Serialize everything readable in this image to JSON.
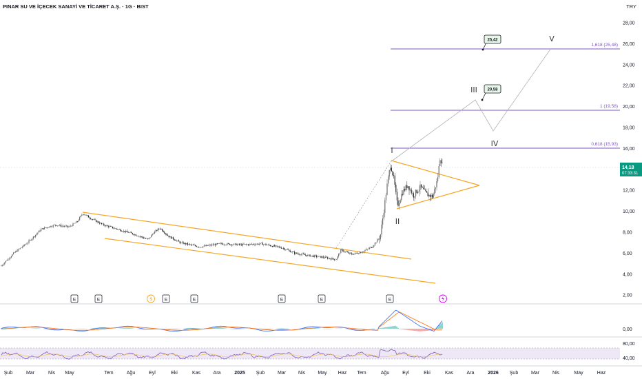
{
  "header": {
    "title": "PINAR SU VE İÇECEK SANAYİ VE TİCARET A.Ş. · 1G · BIST",
    "currency": "TRY"
  },
  "price_axis": {
    "labels": [
      "28,00",
      "26,00",
      "24,00",
      "22,00",
      "20,00",
      "18,00",
      "16,00",
      "14,00",
      "12,00",
      "10,00",
      "8,00",
      "6,00",
      "4,00",
      "2,00"
    ],
    "current_price": "14,18",
    "countdown": "07:33:31"
  },
  "time_axis": {
    "labels": [
      "Şub",
      "Mar",
      "Nis",
      "May",
      "Tem",
      "Ağu",
      "Eyl",
      "Eki",
      "Kas",
      "Ara",
      "2025",
      "Şub",
      "Mar",
      "Nis",
      "May",
      "Haz",
      "Tem",
      "Ağu",
      "Eyl",
      "Eki",
      "Kas",
      "Ara",
      "2026",
      "Şub",
      "Mar",
      "Nis",
      "May",
      "Haz"
    ]
  },
  "fib_levels": [
    {
      "label": "1,618 (25,48)",
      "value": 25.48
    },
    {
      "label": "1 (19,58)",
      "value": 19.58
    },
    {
      "label": "0,618 (15,93)",
      "value": 15.93
    }
  ],
  "wave_labels": [
    "I",
    "II",
    "III",
    "IV",
    "V"
  ],
  "target_tags": [
    "25,42",
    "20,58"
  ],
  "events": [
    "E",
    "E",
    "$",
    "E",
    "E",
    "E",
    "E",
    "E"
  ],
  "macd_axis": {
    "labels": [
      "0,00"
    ]
  },
  "rsi_axis": {
    "labels": [
      "80,00",
      "40,00"
    ]
  },
  "colors": {
    "candle": "#3d3d3d",
    "channel": "#f5a623",
    "fib": "#7e57c2",
    "price_tag": "#089981",
    "macd_line": "#2962ff",
    "signal_line": "#ff6d00",
    "rsi_line": "#7e57c2",
    "rsi_band": "#ede7f6"
  }
}
